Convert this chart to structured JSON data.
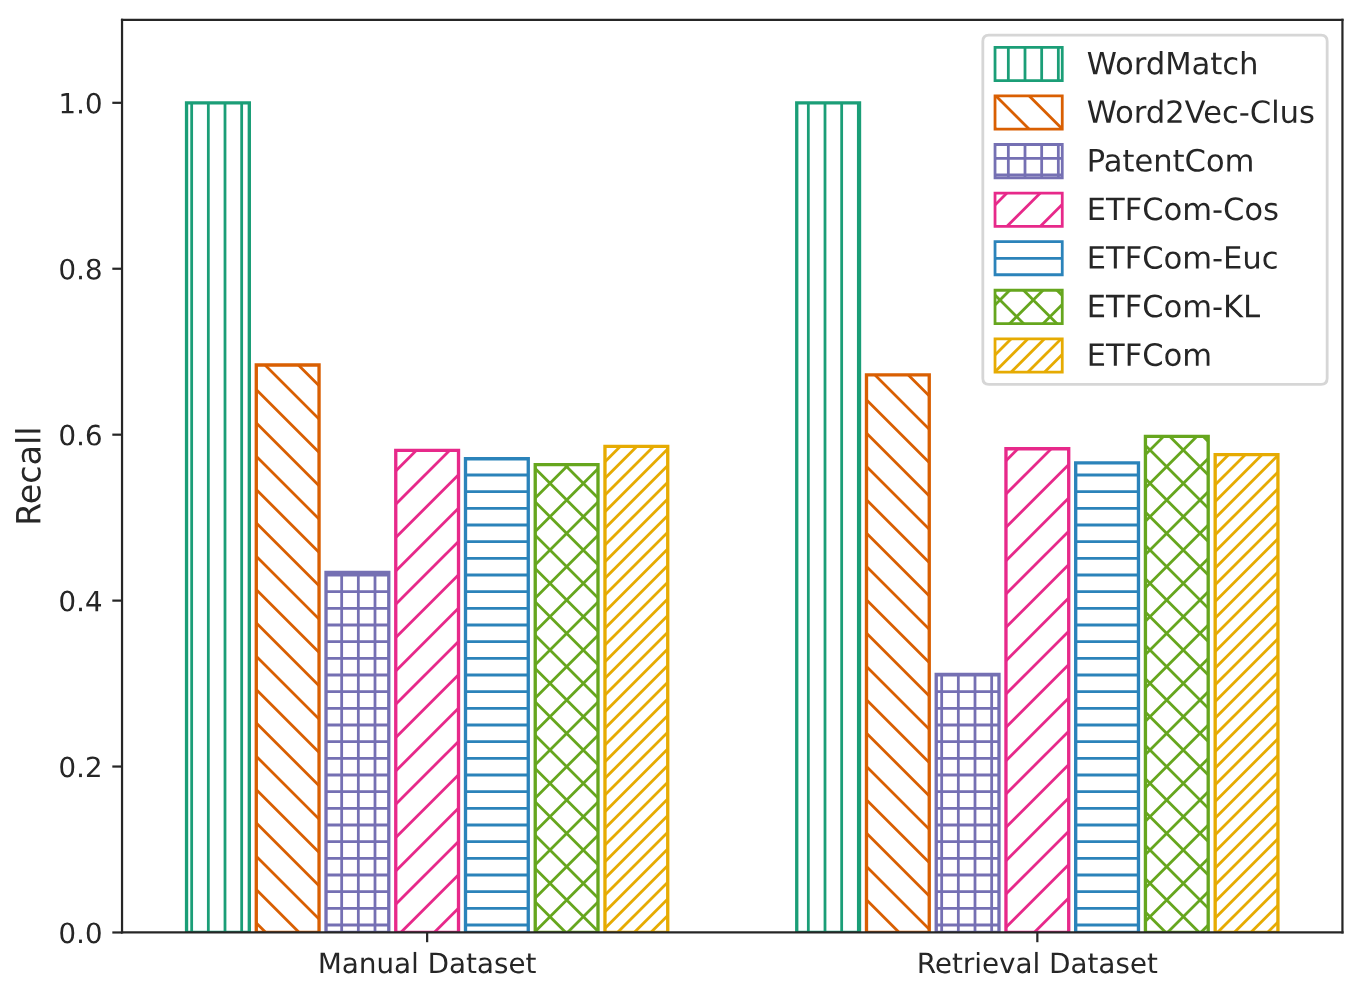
{
  "chart_data": {
    "type": "bar",
    "ylabel": "Recall",
    "categories": [
      "Manual Dataset",
      "Retrieval Dataset"
    ],
    "series": [
      {
        "name": "WordMatch",
        "color": "#1b9e77",
        "values": [
          1.0,
          1.0
        ]
      },
      {
        "name": "Word2Vec-Clus",
        "color": "#d95f02",
        "values": [
          0.684,
          0.672
        ]
      },
      {
        "name": "PatentCom",
        "color": "#7570b3",
        "values": [
          0.434,
          0.311
        ]
      },
      {
        "name": "ETFCom-Cos",
        "color": "#e7298a",
        "values": [
          0.581,
          0.583
        ]
      },
      {
        "name": "ETFCom-Euc",
        "color": "#2b83ba",
        "values": [
          0.571,
          0.566
        ]
      },
      {
        "name": "ETFCom-KL",
        "color": "#66a61e",
        "values": [
          0.564,
          0.598
        ]
      },
      {
        "name": "ETFCom",
        "color": "#e6ab02",
        "values": [
          0.586,
          0.576
        ]
      }
    ],
    "ylim": [
      0,
      1.1
    ],
    "yticks": [
      {
        "value": 0,
        "label": "0.0"
      },
      {
        "value": 0.2,
        "label": "0.2"
      },
      {
        "value": 0.4,
        "label": "0.4"
      },
      {
        "value": 0.6,
        "label": "0.6"
      },
      {
        "value": 0.8,
        "label": "0.8"
      },
      {
        "value": 1.0,
        "label": "1.0"
      }
    ],
    "legend": "top right",
    "grid": false
  }
}
